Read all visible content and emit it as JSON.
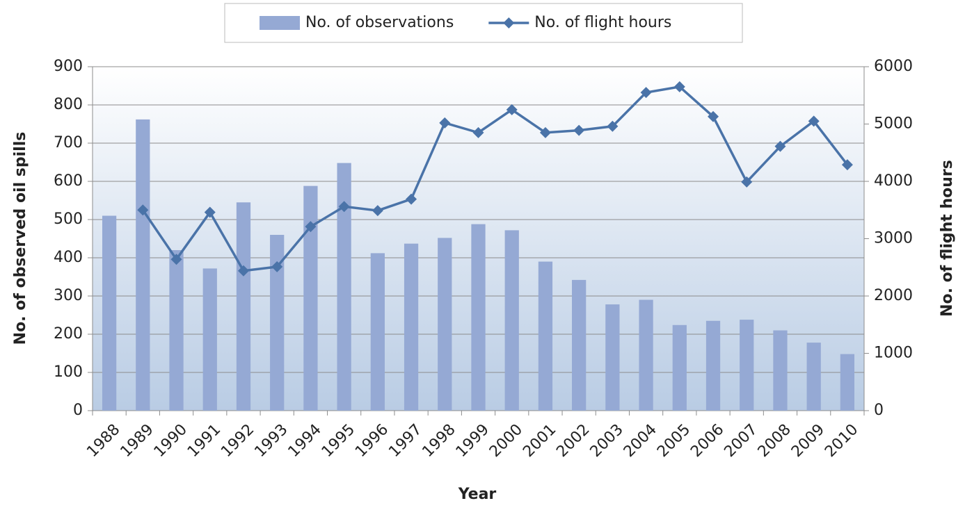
{
  "chart_data": {
    "type": "bar-line",
    "xlabel": "Year",
    "ylabel": "No. of observed oil spills",
    "y2label": "No. of flight hours",
    "categories": [
      "1988",
      "1989",
      "1990",
      "1991",
      "1992",
      "1993",
      "1994",
      "1995",
      "1996",
      "1997",
      "1998",
      "1999",
      "2000",
      "2001",
      "2002",
      "2003",
      "2004",
      "2005",
      "2006",
      "2007",
      "2008",
      "2009",
      "2010"
    ],
    "series": [
      {
        "name": "No. of observations",
        "type": "bar",
        "color": "#95a9d4",
        "axis": "y",
        "values": [
          510,
          762,
          420,
          372,
          545,
          460,
          588,
          648,
          412,
          437,
          452,
          488,
          472,
          390,
          342,
          278,
          290,
          224,
          235,
          238,
          210,
          178,
          148
        ]
      },
      {
        "name": "No. of flight hours",
        "type": "line",
        "color": "#4a73a8",
        "axis": "y2",
        "values": [
          null,
          3500,
          2640,
          3460,
          2440,
          2510,
          3210,
          3560,
          3490,
          3690,
          5020,
          4850,
          5250,
          4850,
          4890,
          4960,
          5550,
          5650,
          5130,
          3990,
          4610,
          5050,
          4290
        ]
      }
    ],
    "ylim": [
      0,
      900
    ],
    "yticks": [
      0,
      100,
      200,
      300,
      400,
      500,
      600,
      700,
      800,
      900
    ],
    "y2lim": [
      0,
      6000
    ],
    "y2ticks": [
      0,
      1000,
      2000,
      3000,
      4000,
      5000,
      6000
    ],
    "grid": true,
    "legend": "top"
  }
}
